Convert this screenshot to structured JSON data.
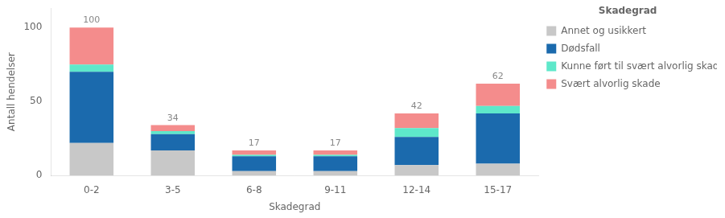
{
  "chart_data": {
    "type": "bar",
    "stacked": true,
    "categories": [
      "0-2",
      "3-5",
      "6-8",
      "9-11",
      "12-14",
      "15-17"
    ],
    "series": [
      {
        "name": "Annet og usikkert",
        "color": "#c8c8c8",
        "values": [
          22,
          17,
          3,
          3,
          7,
          8
        ]
      },
      {
        "name": "Dødsfall",
        "color": "#1b6aad",
        "values": [
          48,
          11,
          10,
          10,
          19,
          34
        ]
      },
      {
        "name": "Kunne ført til svært alvorlig skade",
        "color": "#5ee8ca",
        "values": [
          5,
          2,
          1,
          1,
          6,
          5
        ]
      },
      {
        "name": "Svært alvorlig skade",
        "color": "#f48c8c",
        "values": [
          25,
          4,
          3,
          3,
          10,
          15
        ]
      }
    ],
    "totals": [
      100,
      34,
      17,
      17,
      42,
      62
    ],
    "xlabel": "Skadegrad",
    "ylabel": "Antall hendelser",
    "legend_title": "Skadegrad",
    "legend": "right",
    "ylim": [
      0,
      113
    ],
    "yticks": [
      0,
      50,
      100
    ],
    "grid": false
  }
}
